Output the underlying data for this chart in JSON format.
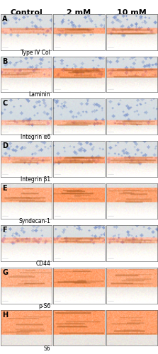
{
  "title_row": [
    "Control",
    "2 mM",
    "10 mM"
  ],
  "row_labels": [
    "A",
    "B",
    "C",
    "D",
    "E",
    "F",
    "G",
    "H"
  ],
  "protein_labels": [
    "Type IV Col",
    "Laminin",
    "Integrin α6",
    "Integrin β1",
    "Syndecan-1",
    "CD44",
    "p-S6",
    "S6"
  ],
  "header_fontsize": 8,
  "protein_fontsize": 5.5,
  "row_label_fontsize": 7,
  "figsize": [
    2.23,
    5.0
  ],
  "dpi": 100,
  "n_rows": 8,
  "n_cols": 3
}
